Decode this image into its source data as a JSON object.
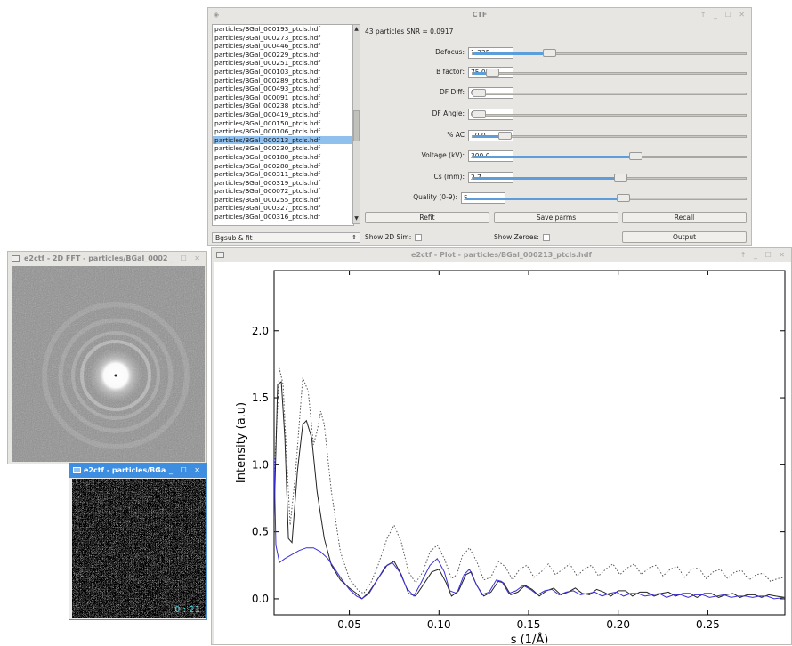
{
  "ctf_window": {
    "title": "CTF",
    "controls": "↑ _ ☐ ✕",
    "particle_list": [
      "particles/BGal_000193_ptcls.hdf",
      "particles/BGal_000273_ptcls.hdf",
      "particles/BGal_000446_ptcls.hdf",
      "particles/BGal_000229_ptcls.hdf",
      "particles/BGal_000251_ptcls.hdf",
      "particles/BGal_000103_ptcls.hdf",
      "particles/BGal_000289_ptcls.hdf",
      "particles/BGal_000493_ptcls.hdf",
      "particles/BGal_000091_ptcls.hdf",
      "particles/BGal_000238_ptcls.hdf",
      "particles/BGal_000419_ptcls.hdf",
      "particles/BGal_000150_ptcls.hdf",
      "particles/BGal_000106_ptcls.hdf",
      "particles/BGal_000213_ptcls.hdf",
      "particles/BGal_000230_ptcls.hdf",
      "particles/BGal_000188_ptcls.hdf",
      "particles/BGal_000288_ptcls.hdf",
      "particles/BGal_000311_ptcls.hdf",
      "particles/BGal_000319_ptcls.hdf",
      "particles/BGal_000072_ptcls.hdf",
      "particles/BGal_000255_ptcls.hdf",
      "particles/BGal_000327_ptcls.hdf",
      "particles/BGal_000316_ptcls.hdf"
    ],
    "selected_index": 13,
    "mode_select": "Bgsub & fit",
    "stats": "43 particles   SNR = 0.0917",
    "params": [
      {
        "label": "Defocus:",
        "value": "1.335",
        "slider": 0.27
      },
      {
        "label": "B factor:",
        "value": "75.0",
        "slider": 0.05
      },
      {
        "label": "DF Diff:",
        "value": "0.0",
        "slider": 0.0
      },
      {
        "label": "DF Angle:",
        "value": "0.0",
        "slider": 0.0
      },
      {
        "label": "% AC",
        "value": "10.0",
        "slider": 0.1
      },
      {
        "label": "Voltage (kV):",
        "value": "300.0",
        "slider": 0.6
      },
      {
        "label": "Cs (mm):",
        "value": "2.7",
        "slider": 0.54
      },
      {
        "label": "Quality (0-9):",
        "value": "5",
        "slider": 0.56
      }
    ],
    "buttons": {
      "refit": "Refit",
      "save": "Save parms",
      "recall": "Recall",
      "output": "Output"
    },
    "show_2d_sim": "Show 2D Sim:",
    "show_zeroes": "Show Zeroes:"
  },
  "fft_window": {
    "title": "e2ctf - 2D FFT - particles/BGal_0002",
    "controls": "↑ _ ☐ ✕"
  },
  "particle_window": {
    "title": "e2ctf - particles/BGa",
    "controls": "↑ _ ☐ ✕",
    "label": "0 : 21"
  },
  "plot_window": {
    "title": "e2ctf - Plot - particles/BGal_000213_ptcls.hdf",
    "controls": "↑ _ ☐ ✕"
  },
  "chart_data": {
    "type": "line",
    "xlabel": "s (1/Å)",
    "ylabel": "Intensity (a.u)",
    "xlim": [
      0.008,
      0.293
    ],
    "ylim": [
      -0.12,
      2.45
    ],
    "xticks": [
      0.05,
      0.1,
      0.15,
      0.2,
      0.25
    ],
    "xtick_labels": [
      "0.05",
      "0.10",
      "0.15",
      "0.20",
      "0.25"
    ],
    "yticks": [
      0.0,
      0.5,
      1.0,
      1.5,
      2.0
    ],
    "ytick_labels": [
      "0.0",
      "0.5",
      "1.0",
      "1.5",
      "2.0"
    ],
    "grid": false,
    "series": [
      {
        "style": "dotted",
        "color": "#555555",
        "points": [
          [
            0.008,
            0.9
          ],
          [
            0.011,
            1.72
          ],
          [
            0.013,
            1.6
          ],
          [
            0.015,
            1.05
          ],
          [
            0.017,
            0.55
          ],
          [
            0.02,
            0.95
          ],
          [
            0.024,
            1.65
          ],
          [
            0.027,
            1.55
          ],
          [
            0.03,
            1.15
          ],
          [
            0.032,
            1.25
          ],
          [
            0.034,
            1.4
          ],
          [
            0.036,
            1.3
          ],
          [
            0.04,
            0.8
          ],
          [
            0.045,
            0.35
          ],
          [
            0.05,
            0.15
          ],
          [
            0.055,
            0.06
          ],
          [
            0.058,
            0.04
          ],
          [
            0.062,
            0.12
          ],
          [
            0.066,
            0.25
          ],
          [
            0.071,
            0.45
          ],
          [
            0.075,
            0.55
          ],
          [
            0.079,
            0.42
          ],
          [
            0.083,
            0.2
          ],
          [
            0.087,
            0.12
          ],
          [
            0.091,
            0.2
          ],
          [
            0.095,
            0.35
          ],
          [
            0.099,
            0.4
          ],
          [
            0.103,
            0.3
          ],
          [
            0.107,
            0.15
          ],
          [
            0.11,
            0.18
          ],
          [
            0.113,
            0.32
          ],
          [
            0.117,
            0.38
          ],
          [
            0.121,
            0.28
          ],
          [
            0.125,
            0.14
          ],
          [
            0.129,
            0.16
          ],
          [
            0.133,
            0.28
          ],
          [
            0.137,
            0.24
          ],
          [
            0.141,
            0.14
          ],
          [
            0.145,
            0.22
          ],
          [
            0.149,
            0.25
          ],
          [
            0.153,
            0.16
          ],
          [
            0.157,
            0.2
          ],
          [
            0.161,
            0.26
          ],
          [
            0.165,
            0.18
          ],
          [
            0.169,
            0.22
          ],
          [
            0.173,
            0.26
          ],
          [
            0.177,
            0.17
          ],
          [
            0.181,
            0.22
          ],
          [
            0.185,
            0.25
          ],
          [
            0.189,
            0.17
          ],
          [
            0.193,
            0.22
          ],
          [
            0.197,
            0.26
          ],
          [
            0.201,
            0.18
          ],
          [
            0.205,
            0.23
          ],
          [
            0.209,
            0.26
          ],
          [
            0.213,
            0.18
          ],
          [
            0.217,
            0.23
          ],
          [
            0.221,
            0.25
          ],
          [
            0.225,
            0.17
          ],
          [
            0.229,
            0.22
          ],
          [
            0.233,
            0.24
          ],
          [
            0.237,
            0.16
          ],
          [
            0.241,
            0.22
          ],
          [
            0.245,
            0.23
          ],
          [
            0.249,
            0.15
          ],
          [
            0.253,
            0.2
          ],
          [
            0.257,
            0.22
          ],
          [
            0.261,
            0.15
          ],
          [
            0.265,
            0.2
          ],
          [
            0.269,
            0.21
          ],
          [
            0.273,
            0.14
          ],
          [
            0.277,
            0.18
          ],
          [
            0.281,
            0.19
          ],
          [
            0.285,
            0.13
          ],
          [
            0.289,
            0.15
          ],
          [
            0.293,
            0.16
          ]
        ]
      },
      {
        "style": "solid",
        "color": "#222222",
        "points": [
          [
            0.008,
            0.6
          ],
          [
            0.01,
            1.6
          ],
          [
            0.012,
            1.62
          ],
          [
            0.014,
            1.2
          ],
          [
            0.016,
            0.45
          ],
          [
            0.018,
            0.42
          ],
          [
            0.021,
            0.95
          ],
          [
            0.024,
            1.3
          ],
          [
            0.026,
            1.33
          ],
          [
            0.029,
            1.2
          ],
          [
            0.032,
            0.8
          ],
          [
            0.036,
            0.45
          ],
          [
            0.04,
            0.25
          ],
          [
            0.045,
            0.14
          ],
          [
            0.05,
            0.08
          ],
          [
            0.054,
            0.04
          ],
          [
            0.057,
            0.0
          ],
          [
            0.061,
            0.05
          ],
          [
            0.066,
            0.15
          ],
          [
            0.071,
            0.25
          ],
          [
            0.075,
            0.28
          ],
          [
            0.079,
            0.18
          ],
          [
            0.083,
            0.04
          ],
          [
            0.087,
            0.02
          ],
          [
            0.091,
            0.1
          ],
          [
            0.096,
            0.2
          ],
          [
            0.1,
            0.22
          ],
          [
            0.104,
            0.12
          ],
          [
            0.107,
            0.02
          ],
          [
            0.111,
            0.06
          ],
          [
            0.115,
            0.18
          ],
          [
            0.118,
            0.2
          ],
          [
            0.121,
            0.1
          ],
          [
            0.125,
            0.02
          ],
          [
            0.129,
            0.05
          ],
          [
            0.133,
            0.13
          ],
          [
            0.136,
            0.12
          ],
          [
            0.14,
            0.03
          ],
          [
            0.144,
            0.05
          ],
          [
            0.148,
            0.1
          ],
          [
            0.152,
            0.07
          ],
          [
            0.156,
            0.02
          ],
          [
            0.16,
            0.06
          ],
          [
            0.164,
            0.08
          ],
          [
            0.168,
            0.03
          ],
          [
            0.172,
            0.05
          ],
          [
            0.176,
            0.08
          ],
          [
            0.18,
            0.04
          ],
          [
            0.184,
            0.03
          ],
          [
            0.188,
            0.07
          ],
          [
            0.192,
            0.05
          ],
          [
            0.196,
            0.02
          ],
          [
            0.2,
            0.06
          ],
          [
            0.204,
            0.06
          ],
          [
            0.208,
            0.02
          ],
          [
            0.212,
            0.05
          ],
          [
            0.216,
            0.05
          ],
          [
            0.22,
            0.02
          ],
          [
            0.224,
            0.04
          ],
          [
            0.228,
            0.05
          ],
          [
            0.232,
            0.02
          ],
          [
            0.236,
            0.04
          ],
          [
            0.24,
            0.04
          ],
          [
            0.244,
            0.01
          ],
          [
            0.248,
            0.04
          ],
          [
            0.252,
            0.04
          ],
          [
            0.256,
            0.01
          ],
          [
            0.26,
            0.03
          ],
          [
            0.264,
            0.04
          ],
          [
            0.268,
            0.01
          ],
          [
            0.272,
            0.03
          ],
          [
            0.276,
            0.03
          ],
          [
            0.28,
            0.01
          ],
          [
            0.284,
            0.03
          ],
          [
            0.288,
            0.02
          ],
          [
            0.293,
            0.01
          ]
        ]
      },
      {
        "style": "solid",
        "color": "#3a2fd8",
        "points": [
          [
            0.008,
            1.05
          ],
          [
            0.009,
            0.4
          ],
          [
            0.011,
            0.27
          ],
          [
            0.014,
            0.3
          ],
          [
            0.018,
            0.33
          ],
          [
            0.022,
            0.36
          ],
          [
            0.026,
            0.38
          ],
          [
            0.03,
            0.38
          ],
          [
            0.034,
            0.35
          ],
          [
            0.038,
            0.3
          ],
          [
            0.042,
            0.22
          ],
          [
            0.046,
            0.14
          ],
          [
            0.05,
            0.07
          ],
          [
            0.054,
            0.02
          ],
          [
            0.057,
            0.0
          ],
          [
            0.061,
            0.04
          ],
          [
            0.066,
            0.15
          ],
          [
            0.07,
            0.24
          ],
          [
            0.074,
            0.27
          ],
          [
            0.078,
            0.2
          ],
          [
            0.082,
            0.08
          ],
          [
            0.086,
            0.02
          ],
          [
            0.09,
            0.12
          ],
          [
            0.095,
            0.25
          ],
          [
            0.099,
            0.3
          ],
          [
            0.103,
            0.2
          ],
          [
            0.106,
            0.06
          ],
          [
            0.11,
            0.04
          ],
          [
            0.114,
            0.18
          ],
          [
            0.117,
            0.22
          ],
          [
            0.12,
            0.13
          ],
          [
            0.124,
            0.03
          ],
          [
            0.128,
            0.05
          ],
          [
            0.132,
            0.14
          ],
          [
            0.135,
            0.13
          ],
          [
            0.139,
            0.04
          ],
          [
            0.143,
            0.06
          ],
          [
            0.147,
            0.1
          ],
          [
            0.151,
            0.07
          ],
          [
            0.155,
            0.03
          ],
          [
            0.159,
            0.06
          ],
          [
            0.163,
            0.07
          ],
          [
            0.167,
            0.03
          ],
          [
            0.171,
            0.05
          ],
          [
            0.175,
            0.06
          ],
          [
            0.179,
            0.03
          ],
          [
            0.183,
            0.04
          ],
          [
            0.187,
            0.05
          ],
          [
            0.191,
            0.02
          ],
          [
            0.195,
            0.04
          ],
          [
            0.199,
            0.05
          ],
          [
            0.203,
            0.02
          ],
          [
            0.207,
            0.04
          ],
          [
            0.211,
            0.04
          ],
          [
            0.215,
            0.02
          ],
          [
            0.219,
            0.03
          ],
          [
            0.223,
            0.04
          ],
          [
            0.227,
            0.01
          ],
          [
            0.231,
            0.03
          ],
          [
            0.235,
            0.03
          ],
          [
            0.239,
            0.01
          ],
          [
            0.243,
            0.03
          ],
          [
            0.247,
            0.03
          ],
          [
            0.251,
            0.01
          ],
          [
            0.255,
            0.02
          ],
          [
            0.259,
            0.03
          ],
          [
            0.263,
            0.01
          ],
          [
            0.267,
            0.02
          ],
          [
            0.271,
            0.02
          ],
          [
            0.275,
            0.01
          ],
          [
            0.279,
            0.02
          ],
          [
            0.283,
            0.02
          ],
          [
            0.287,
            0.0
          ],
          [
            0.293,
            0.01
          ]
        ]
      }
    ]
  }
}
